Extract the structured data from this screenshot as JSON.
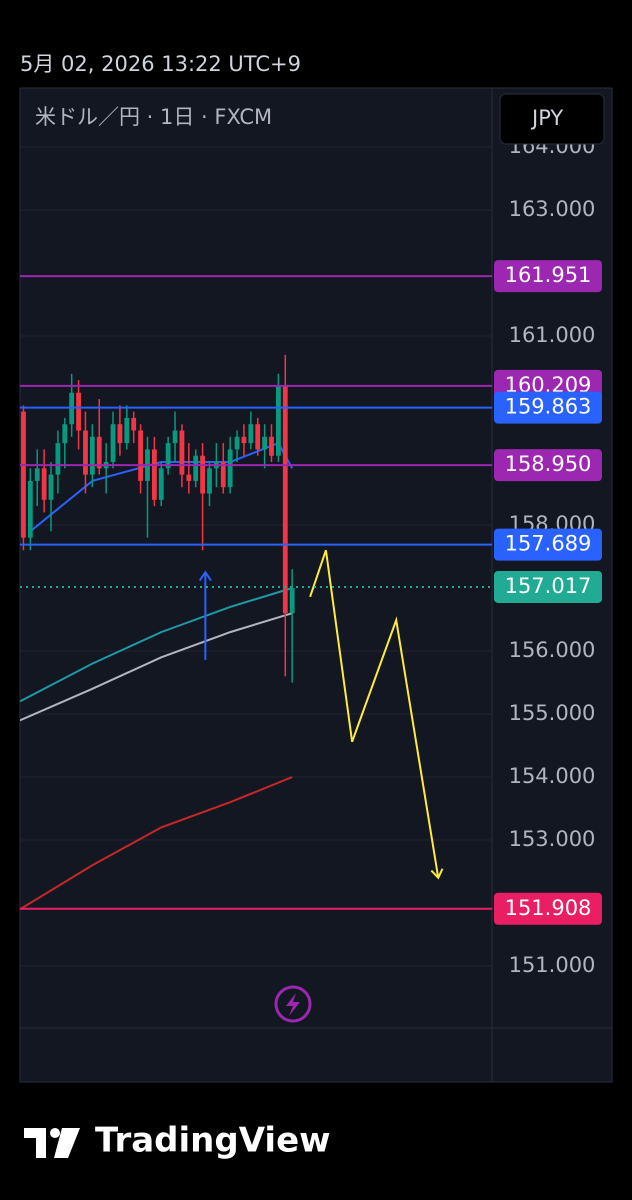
{
  "header": {
    "datetime": "5月 02, 2026 13:22 UTC+9"
  },
  "brand": "TradingView",
  "chart_data": {
    "type": "candlestick",
    "title": "米ドル／円 · 1日 · FXCM",
    "currency": "JPY",
    "xlim": [
      -0.5,
      68
    ],
    "ylim": [
      150.016,
      164.937
    ],
    "yticks": [
      {
        "value": 164,
        "label": "164.000"
      },
      {
        "value": 163,
        "label": "163.000"
      },
      {
        "value": 161,
        "label": "161.000"
      },
      {
        "value": 158,
        "label": "158.000"
      },
      {
        "value": 156,
        "label": "156.000"
      },
      {
        "value": 155,
        "label": "155.000"
      },
      {
        "value": 154,
        "label": "154.000"
      },
      {
        "value": 153,
        "label": "153.000"
      },
      {
        "value": 151,
        "label": "151.000"
      }
    ],
    "grid": true,
    "up_color": "#089981",
    "down_color": "#f23645",
    "open": [
      159.8,
      157.8,
      158.7,
      158.9,
      158.4,
      158.8,
      159.3,
      159.6,
      160.1,
      159.5,
      158.8,
      159.4,
      158.9,
      159.0,
      159.6,
      159.3,
      159.7,
      159.5,
      158.7,
      159.2,
      158.4,
      158.9,
      159.3,
      159.5,
      158.8,
      158.7,
      159.1,
      158.5,
      158.9,
      159.0,
      158.6,
      159.2,
      159.4,
      159.3,
      159.6,
      159.2,
      159.4,
      159.1,
      160.2,
      156.6
    ],
    "high": [
      159.9,
      158.9,
      159.2,
      159.2,
      159.0,
      159.5,
      159.7,
      160.4,
      160.3,
      159.8,
      159.6,
      160.0,
      159.3,
      159.8,
      159.9,
      159.9,
      159.8,
      159.6,
      159.4,
      159.4,
      159.0,
      159.4,
      159.8,
      159.6,
      159.3,
      159.2,
      159.3,
      159.0,
      159.3,
      159.3,
      159.4,
      159.5,
      159.6,
      159.8,
      159.7,
      159.6,
      159.6,
      160.4,
      160.7,
      157.3
    ],
    "low": [
      157.6,
      157.6,
      158.3,
      158.2,
      157.9,
      158.5,
      158.9,
      159.4,
      159.2,
      158.5,
      158.6,
      158.8,
      158.5,
      158.9,
      159.1,
      159.2,
      159.3,
      158.5,
      157.8,
      158.3,
      158.3,
      158.8,
      159.0,
      158.6,
      158.5,
      158.6,
      157.6,
      158.3,
      158.6,
      158.5,
      158.5,
      159.0,
      159.1,
      159.2,
      159.1,
      158.9,
      159.0,
      159.0,
      155.6,
      155.5
    ],
    "close": [
      157.8,
      158.7,
      158.9,
      158.4,
      158.8,
      159.3,
      159.6,
      160.1,
      159.5,
      158.8,
      159.4,
      158.9,
      159.0,
      159.6,
      159.3,
      159.7,
      159.5,
      158.7,
      159.2,
      158.4,
      158.9,
      159.3,
      159.5,
      158.8,
      158.7,
      159.1,
      158.5,
      158.9,
      159.0,
      158.6,
      159.2,
      159.4,
      159.3,
      159.6,
      159.2,
      159.4,
      159.1,
      160.2,
      156.6,
      157.0
    ],
    "lines": [
      {
        "color": "#2962ff",
        "x": [
          1,
          10,
          20,
          30,
          37,
          39
        ],
        "values": [
          157.9,
          158.7,
          159.0,
          159.0,
          159.3,
          158.9
        ]
      },
      {
        "color": "#1e9aa6",
        "x": [
          -0.5,
          10,
          20,
          30,
          39
        ],
        "values": [
          155.2,
          155.8,
          156.3,
          156.7,
          157.0
        ]
      },
      {
        "color": "#b2b5be",
        "x": [
          -0.5,
          10,
          20,
          30,
          39
        ],
        "values": [
          154.9,
          155.4,
          155.9,
          156.3,
          156.6
        ]
      },
      {
        "color": "#c62828",
        "x": [
          -0.5,
          10,
          20,
          30,
          39
        ],
        "values": [
          151.9,
          152.6,
          153.2,
          153.6,
          154.0
        ]
      }
    ],
    "drawings": [
      {
        "color": "#ffeb3b",
        "x": [
          41.6,
          43.9,
          47.7,
          54.1,
          60.2
        ],
        "values": [
          156.86,
          157.6,
          154.56,
          156.49,
          152.4
        ]
      },
      {
        "color": "#2962ff",
        "x": [
          26.4,
          26.4
        ],
        "values": [
          155.86,
          157.25
        ]
      }
    ],
    "levels": [
      {
        "value": 161.951,
        "label": "161.951",
        "color": "#9c27b0",
        "dotted": false
      },
      {
        "value": 160.209,
        "label": "160.209",
        "color": "#9c27b0",
        "dotted": false
      },
      {
        "value": 159.863,
        "label": "159.863",
        "color": "#2962ff",
        "dotted": false
      },
      {
        "value": 158.95,
        "label": "158.950",
        "color": "#9c27b0",
        "dotted": false
      },
      {
        "value": 157.689,
        "label": "157.689",
        "color": "#2962ff",
        "dotted": false
      },
      {
        "value": 157.017,
        "label": "157.017",
        "color": "#22ab94",
        "dotted": true
      },
      {
        "value": 151.908,
        "label": "151.908",
        "color": "#e91e63",
        "dotted": false
      }
    ]
  }
}
